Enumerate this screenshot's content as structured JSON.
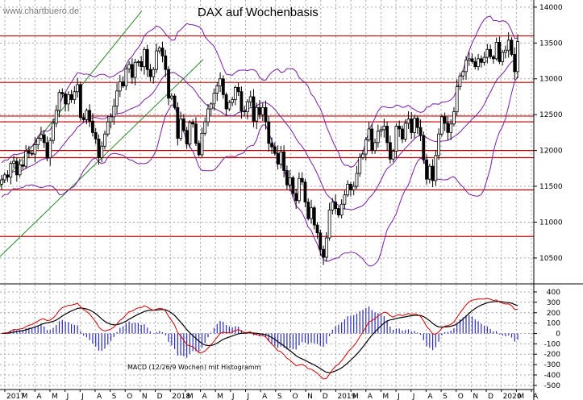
{
  "watermark": "www.chartbuero.de",
  "chart_data": [
    {
      "type": "candlestick",
      "title": "DAX auf Wochenbasis",
      "ylim": [
        10150,
        14100
      ],
      "y_ticks": [
        10500,
        11000,
        11500,
        12000,
        12500,
        13000,
        13500,
        14000
      ],
      "x_labels": [
        "2017",
        "M",
        "A",
        "M",
        "J",
        "J",
        "A",
        "S",
        "O",
        "N",
        "D",
        "2018",
        "M",
        "A",
        "M",
        "J",
        "J",
        "A",
        "S",
        "O",
        "N",
        "D",
        "2019",
        "M",
        "A",
        "M",
        "J",
        "J",
        "A",
        "S",
        "O",
        "N",
        "D",
        "2020",
        "M",
        "A"
      ],
      "grid": true,
      "horizontal_lines": [
        13600,
        12950,
        12480,
        12400,
        12000,
        11900,
        11450,
        10800
      ],
      "colors": {
        "candle": "#000000",
        "bollinger": "#7a1fa2",
        "support_resistance": "#c00000",
        "trend_channel": "#2a8a2a"
      },
      "weekly_close": [
        11590,
        11660,
        11630,
        11820,
        11850,
        11660,
        11800,
        11780,
        11990,
        11960,
        11950,
        12080,
        12170,
        12220,
        12110,
        11900,
        12140,
        12380,
        12560,
        12810,
        12790,
        12650,
        12780,
        12710,
        12820,
        12920,
        12460,
        12430,
        12560,
        12410,
        12250,
        12160,
        11900,
        12060,
        12230,
        12400,
        12470,
        12620,
        12830,
        12960,
        12900,
        13140,
        13200,
        13020,
        13230,
        13240,
        13170,
        13410,
        13130,
        13030,
        13130,
        13390,
        13430,
        13320,
        13130,
        12730,
        12760,
        12600,
        12170,
        12440,
        12280,
        12090,
        12390,
        12370,
        12100,
        11940,
        12240,
        12400,
        12580,
        12650,
        12800,
        12900,
        13000,
        12780,
        12580,
        12670,
        12710,
        12880,
        12820,
        12550,
        12540,
        12680,
        12750,
        12410,
        12600,
        12500,
        12600,
        12400,
        12100,
        12050,
        11960,
        11810,
        11980,
        11720,
        11520,
        11620,
        11400,
        11300,
        11610,
        11560,
        11280,
        11050,
        11200,
        10960,
        10850,
        10620,
        10510,
        10780,
        11170,
        11280,
        11190,
        11100,
        11250,
        11380,
        11530,
        11450,
        11500,
        11680,
        11900,
        11950,
        12150,
        12300,
        12000,
        12110,
        12270,
        12290,
        12340,
        12110,
        11880,
        11990,
        12340,
        12300,
        12160,
        12380,
        12440,
        12250,
        12450,
        12320,
        12210,
        11870,
        11600,
        11780,
        11580,
        11930,
        12230,
        12470,
        12380,
        12250,
        12370,
        12540,
        12890,
        13040,
        13100,
        13260,
        13280,
        13240,
        13170,
        13280,
        13230,
        13300,
        13410,
        13310,
        13280,
        13510,
        13240,
        13370,
        13400,
        13540,
        13340,
        13100,
        13520
      ]
    },
    {
      "type": "line",
      "title": "MACD (12/26/9 Wochen) mit Histogramm",
      "ylim": [
        -540,
        470
      ],
      "y_ticks": [
        400,
        300,
        200,
        100,
        0,
        -100,
        -200,
        -300,
        -400,
        -500
      ],
      "series": [
        {
          "name": "MACD",
          "color": "#d40000"
        },
        {
          "name": "Signal",
          "color": "#000000"
        },
        {
          "name": "Histogramm",
          "color": "#2a2ab8"
        }
      ],
      "x_labels": [
        "2017",
        "M",
        "A",
        "M",
        "J",
        "J",
        "A",
        "S",
        "O",
        "N",
        "D",
        "2018",
        "M",
        "A",
        "M",
        "J",
        "J",
        "A",
        "S",
        "O",
        "N",
        "D",
        "2019",
        "M",
        "A",
        "M",
        "J",
        "J",
        "A",
        "S",
        "O",
        "N",
        "D",
        "2020",
        "M",
        "A"
      ]
    }
  ]
}
